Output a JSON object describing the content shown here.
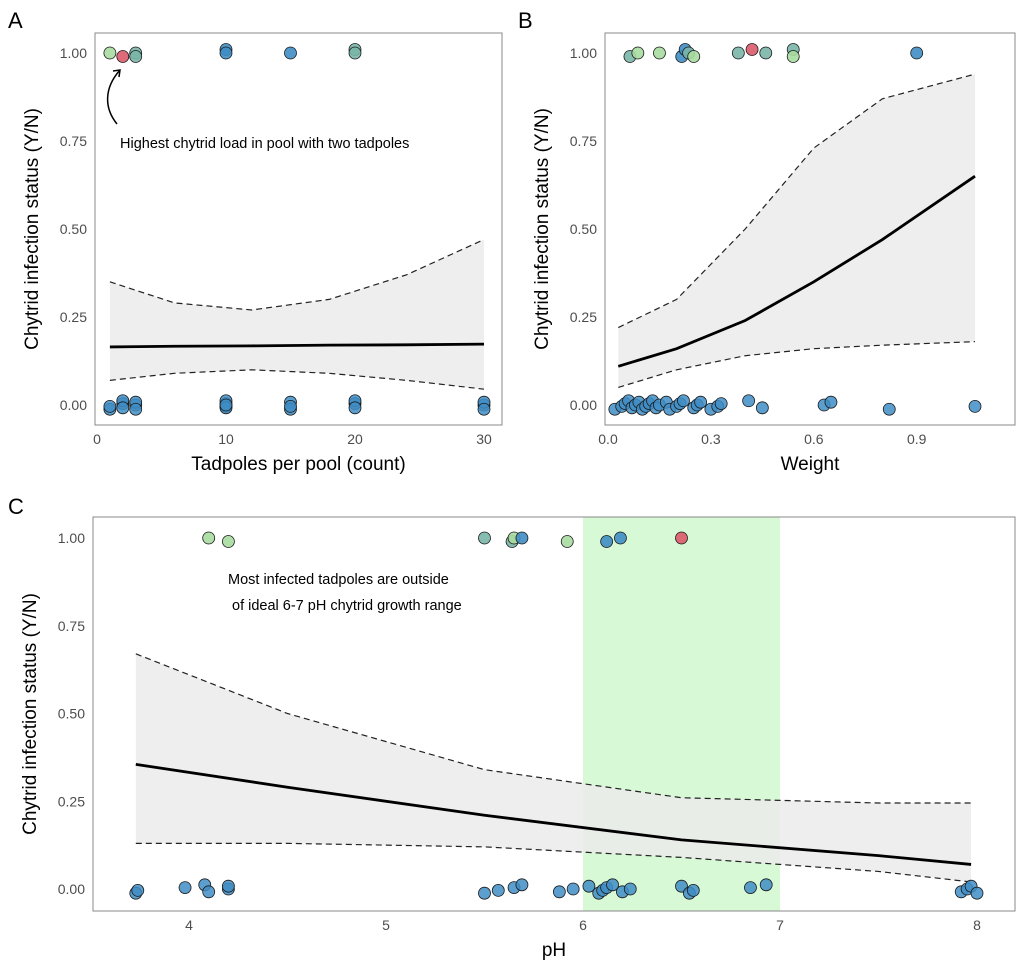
{
  "colors": {
    "blue": "#3f8dc4",
    "green": "#a9dba0",
    "teal": "#7ab6a8",
    "red": "#dc5a6a",
    "band": "#d8f9d6",
    "ci": "#ebebeb"
  },
  "chart_data": [
    {
      "panel": "A",
      "type": "scatter",
      "xlabel": "Tadpoles per pool (count)",
      "ylabel": "Chytrid infection status (Y/N)",
      "xlim": [
        0,
        31.5
      ],
      "ylim": [
        -0.05,
        1.05
      ],
      "xticks": [
        0,
        10,
        20,
        30
      ],
      "yticks": [
        0,
        0.25,
        0.5,
        0.75,
        1
      ],
      "ytick_labels": [
        "0.00",
        "0.25",
        "0.50",
        "0.75",
        "1.00"
      ],
      "annotation": "Highest chytrid load in pool with two tadpoles",
      "points_infected": [
        {
          "x": 1,
          "y": 1,
          "c": "green"
        },
        {
          "x": 2,
          "y": 0.99,
          "c": "red"
        },
        {
          "x": 3,
          "y": 1,
          "c": "teal"
        },
        {
          "x": 3,
          "y": 0.99,
          "c": "teal"
        },
        {
          "x": 10,
          "y": 1.01,
          "c": "blue"
        },
        {
          "x": 10,
          "y": 1,
          "c": "blue"
        },
        {
          "x": 15,
          "y": 1,
          "c": "blue"
        },
        {
          "x": 20,
          "y": 1.01,
          "c": "teal"
        },
        {
          "x": 20,
          "y": 1,
          "c": "teal"
        }
      ],
      "points_uninfected_x": [
        1,
        1,
        2,
        2,
        2,
        3,
        3,
        3,
        10,
        10,
        10,
        10,
        10,
        15,
        15,
        15,
        20,
        20,
        20,
        30,
        30,
        30
      ],
      "fit": {
        "x": [
          1,
          6,
          12,
          18,
          24,
          30
        ],
        "y": [
          0.165,
          0.167,
          0.168,
          0.17,
          0.171,
          0.173
        ]
      },
      "ci_upper": {
        "x": [
          1,
          6,
          12,
          18,
          24,
          30
        ],
        "y": [
          0.35,
          0.29,
          0.27,
          0.3,
          0.37,
          0.47
        ]
      },
      "ci_lower": {
        "x": [
          1,
          6,
          12,
          18,
          24,
          30
        ],
        "y": [
          0.07,
          0.09,
          0.1,
          0.09,
          0.07,
          0.045
        ]
      }
    },
    {
      "panel": "B",
      "type": "scatter",
      "xlabel": "Weight",
      "ylabel": "Chytrid infection status (Y/N)",
      "xlim": [
        -0.01,
        1.1
      ],
      "ylim": [
        -0.05,
        1.05
      ],
      "xticks": [
        0,
        0.3,
        0.6,
        0.9
      ],
      "xtick_labels": [
        "0.0",
        "0.3",
        "0.6",
        "0.9"
      ],
      "yticks": [
        0,
        0.25,
        0.5,
        0.75,
        1
      ],
      "ytick_labels": [
        "0.00",
        "0.25",
        "0.50",
        "0.75",
        "1.00"
      ],
      "points_infected": [
        {
          "x": 0.064,
          "y": 0.99,
          "c": "teal"
        },
        {
          "x": 0.087,
          "y": 1,
          "c": "green"
        },
        {
          "x": 0.15,
          "y": 1,
          "c": "green"
        },
        {
          "x": 0.215,
          "y": 0.99,
          "c": "blue"
        },
        {
          "x": 0.225,
          "y": 1.01,
          "c": "blue"
        },
        {
          "x": 0.235,
          "y": 1,
          "c": "teal"
        },
        {
          "x": 0.25,
          "y": 0.99,
          "c": "green"
        },
        {
          "x": 0.38,
          "y": 1,
          "c": "teal"
        },
        {
          "x": 0.42,
          "y": 1.01,
          "c": "red"
        },
        {
          "x": 0.46,
          "y": 1,
          "c": "teal"
        },
        {
          "x": 0.54,
          "y": 1.01,
          "c": "teal"
        },
        {
          "x": 0.54,
          "y": 0.99,
          "c": "green"
        },
        {
          "x": 0.9,
          "y": 1,
          "c": "blue"
        }
      ],
      "points_uninfected_x": [
        0.02,
        0.04,
        0.05,
        0.06,
        0.07,
        0.08,
        0.09,
        0.1,
        0.11,
        0.12,
        0.13,
        0.14,
        0.15,
        0.17,
        0.18,
        0.2,
        0.21,
        0.22,
        0.25,
        0.26,
        0.27,
        0.3,
        0.32,
        0.33,
        0.41,
        0.45,
        0.63,
        0.65,
        0.82,
        1.07
      ],
      "fit": {
        "x": [
          0.03,
          0.2,
          0.4,
          0.6,
          0.8,
          1.07
        ],
        "y": [
          0.11,
          0.16,
          0.24,
          0.35,
          0.47,
          0.65
        ]
      },
      "ci_upper": {
        "x": [
          0.03,
          0.2,
          0.4,
          0.6,
          0.8,
          1.07
        ],
        "y": [
          0.22,
          0.3,
          0.5,
          0.73,
          0.87,
          0.94
        ]
      },
      "ci_lower": {
        "x": [
          0.03,
          0.2,
          0.4,
          0.6,
          0.8,
          1.07
        ],
        "y": [
          0.05,
          0.1,
          0.14,
          0.16,
          0.17,
          0.18
        ]
      }
    },
    {
      "panel": "C",
      "type": "scatter",
      "xlabel": "pH",
      "ylabel": "Chytrid infection status (Y/N)",
      "xlim": [
        3.5,
        8.15
      ],
      "ylim": [
        -0.05,
        1.05
      ],
      "xticks": [
        4,
        5,
        6,
        7,
        8
      ],
      "yticks": [
        0,
        0.25,
        0.5,
        0.75,
        1
      ],
      "ytick_labels": [
        "0.00",
        "0.25",
        "0.50",
        "0.75",
        "1.00"
      ],
      "shaded_range": [
        6,
        7
      ],
      "annotation": [
        "Most infected tadpoles are outside",
        "of ideal 6-7 pH chytrid growth range"
      ],
      "points_infected": [
        {
          "x": 4.1,
          "y": 1,
          "c": "green"
        },
        {
          "x": 4.2,
          "y": 0.99,
          "c": "green"
        },
        {
          "x": 5.5,
          "y": 1,
          "c": "teal"
        },
        {
          "x": 5.64,
          "y": 0.99,
          "c": "teal"
        },
        {
          "x": 5.65,
          "y": 1,
          "c": "green"
        },
        {
          "x": 5.69,
          "y": 1,
          "c": "blue"
        },
        {
          "x": 5.92,
          "y": 0.99,
          "c": "green"
        },
        {
          "x": 6.12,
          "y": 0.99,
          "c": "blue"
        },
        {
          "x": 6.19,
          "y": 1,
          "c": "blue"
        },
        {
          "x": 6.5,
          "y": 1,
          "c": "red"
        }
      ],
      "points_uninfected_x": [
        3.73,
        3.74,
        3.98,
        4.08,
        4.1,
        4.2,
        4.2,
        5.5,
        5.57,
        5.65,
        5.69,
        5.88,
        5.95,
        6.03,
        6.08,
        6.1,
        6.12,
        6.15,
        6.2,
        6.24,
        6.5,
        6.54,
        6.56,
        6.85,
        6.93,
        7.92,
        7.95,
        7.97,
        8.0
      ],
      "fit": {
        "x": [
          3.73,
          4.5,
          5.5,
          6.5,
          7.5,
          7.97
        ],
        "y": [
          0.355,
          0.29,
          0.21,
          0.14,
          0.095,
          0.07
        ]
      },
      "ci_upper": {
        "x": [
          3.73,
          4.5,
          5.5,
          6.5,
          7.5,
          7.97
        ],
        "y": [
          0.67,
          0.5,
          0.34,
          0.26,
          0.245,
          0.245
        ]
      },
      "ci_lower": {
        "x": [
          3.73,
          4.5,
          5.5,
          6.5,
          7.5,
          7.97
        ],
        "y": [
          0.13,
          0.13,
          0.12,
          0.09,
          0.05,
          0.02
        ]
      }
    }
  ]
}
